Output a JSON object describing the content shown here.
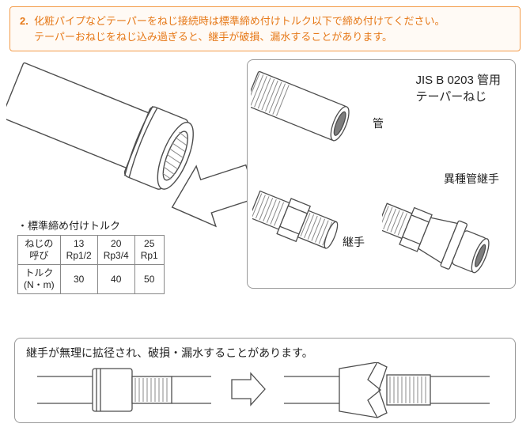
{
  "warning": {
    "number": "2.",
    "line1": "化粧パイプなどテーパーをねじ接続時は標準締め付けトルク以下で締め付けてください。",
    "line2": "テーパーおねじをねじ込み過ぎると、継手が破損、漏水することがあります。"
  },
  "detail": {
    "title_line1": "JIS B 0203 管用",
    "title_line2": "テーパーねじ",
    "label_pipe": "管",
    "label_joint": "継手",
    "label_dissimilar": "異種管継手"
  },
  "torque": {
    "title": "・標準締め付けトルク",
    "header_row": "ねじの\n呼び",
    "cols": [
      {
        "size": "13",
        "rp": "Rp1/2",
        "nm": "30"
      },
      {
        "size": "20",
        "rp": "Rp3/4",
        "nm": "40"
      },
      {
        "size": "25",
        "rp": "Rp1",
        "nm": "50"
      }
    ],
    "row_torque_label": "トルク\n(N・m)"
  },
  "bottom": {
    "text": "継手が無理に拡径され、破損・漏水することがあります。"
  },
  "colors": {
    "stroke": "#4d4d4d",
    "hatch": "#8a8a8a",
    "panel_border": "#999999",
    "warn_border": "#f39c4a",
    "warn_text": "#e67817"
  }
}
